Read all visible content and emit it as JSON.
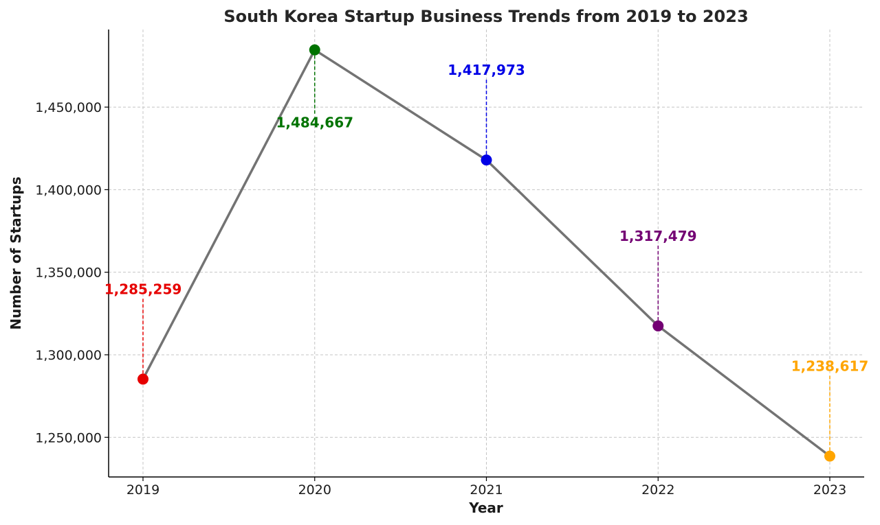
{
  "chart_data": {
    "type": "line",
    "title": "South Korea Startup Business Trends from 2019 to 2023",
    "xlabel": "Year",
    "ylabel": "Number of Startups",
    "categories": [
      "2019",
      "2020",
      "2021",
      "2022",
      "2023"
    ],
    "values": [
      1285259,
      1484667,
      1417973,
      1317479,
      1238617
    ],
    "data_labels": [
      "1,285,259",
      "1,484,667",
      "1,417,973",
      "1,317,479",
      "1,238,617"
    ],
    "point_colors": [
      "#e60000",
      "#007300",
      "#0000e6",
      "#730073",
      "#ffa500"
    ],
    "label_position": [
      "above",
      "below",
      "above",
      "above",
      "above"
    ],
    "line_color": "#737373",
    "ylim": [
      1226000,
      1497000
    ],
    "yticks": [
      1250000,
      1300000,
      1350000,
      1400000,
      1450000
    ],
    "ytick_labels": [
      "1,250,000",
      "1,300,000",
      "1,350,000",
      "1,400,000",
      "1,450,000"
    ],
    "grid": true
  }
}
